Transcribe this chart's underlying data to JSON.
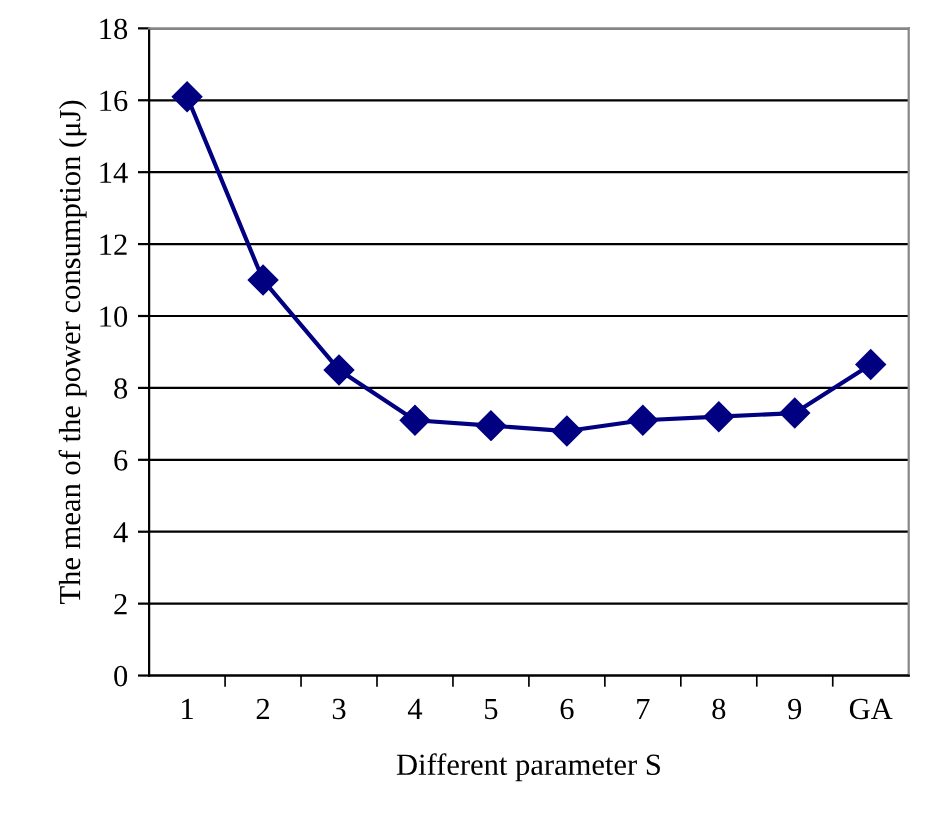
{
  "chart_data": {
    "type": "line",
    "xlabel": "Different parameter S",
    "ylabel": "The mean of the power consumption (μJ)",
    "categories": [
      "1",
      "2",
      "3",
      "4",
      "5",
      "6",
      "7",
      "8",
      "9",
      "GA"
    ],
    "series": [
      {
        "color": "#000080",
        "values": [
          16.1,
          11.0,
          8.5,
          7.1,
          6.95,
          6.8,
          7.1,
          7.2,
          7.3,
          8.65
        ]
      }
    ],
    "ylim": [
      0,
      18
    ],
    "yticks": [
      0,
      2,
      4,
      6,
      8,
      10,
      12,
      14,
      16,
      18
    ],
    "grid": "y",
    "marker": "diamond",
    "line_style": "solid",
    "legend": false
  }
}
